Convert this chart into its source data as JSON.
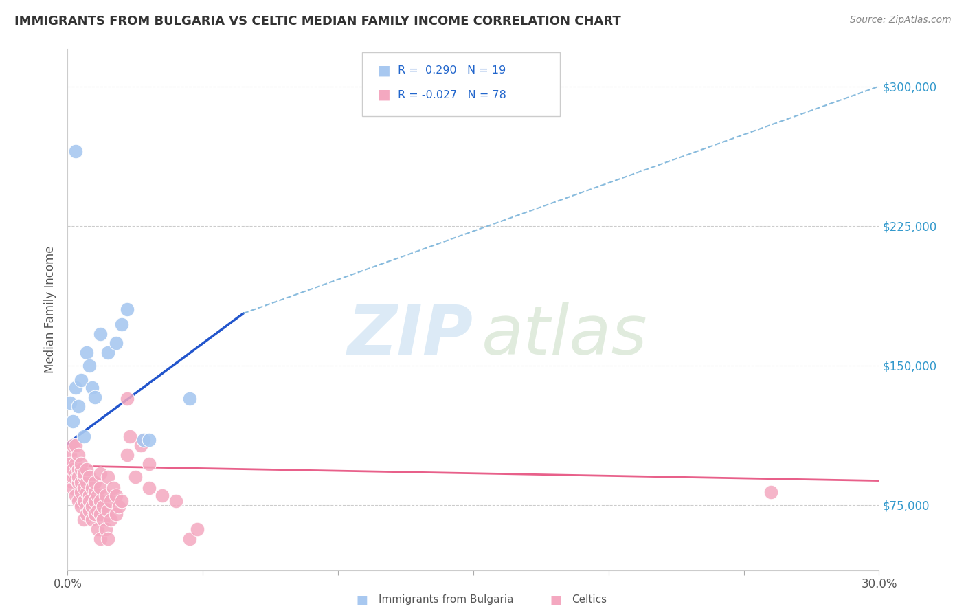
{
  "title": "IMMIGRANTS FROM BULGARIA VS CELTIC MEDIAN FAMILY INCOME CORRELATION CHART",
  "source": "Source: ZipAtlas.com",
  "ylabel": "Median Family Income",
  "xlim": [
    0.0,
    0.3
  ],
  "ylim": [
    40000,
    320000
  ],
  "yticks": [
    75000,
    150000,
    225000,
    300000
  ],
  "ytick_labels": [
    "$75,000",
    "$150,000",
    "$225,000",
    "$300,000"
  ],
  "xticks": [
    0.0,
    0.05,
    0.1,
    0.15,
    0.2,
    0.25,
    0.3
  ],
  "color_bulgaria": "#a8c8f0",
  "color_celtics": "#f4a8c0",
  "line_color_bulgaria": "#2255cc",
  "line_color_celtics": "#e8608a",
  "dashed_line_color": "#88bbdd",
  "title_color": "#333333",
  "grid_color": "#cccccc",
  "bg_color": "#ffffff",
  "bulgaria_dots": [
    [
      0.001,
      130000
    ],
    [
      0.002,
      120000
    ],
    [
      0.003,
      138000
    ],
    [
      0.004,
      128000
    ],
    [
      0.005,
      142000
    ],
    [
      0.006,
      112000
    ],
    [
      0.007,
      157000
    ],
    [
      0.008,
      150000
    ],
    [
      0.009,
      138000
    ],
    [
      0.01,
      133000
    ],
    [
      0.012,
      167000
    ],
    [
      0.015,
      157000
    ],
    [
      0.018,
      162000
    ],
    [
      0.02,
      172000
    ],
    [
      0.022,
      180000
    ],
    [
      0.028,
      110000
    ],
    [
      0.03,
      110000
    ],
    [
      0.045,
      132000
    ],
    [
      0.003,
      265000
    ]
  ],
  "celtics_dots": [
    [
      0.001,
      95000
    ],
    [
      0.001,
      88000
    ],
    [
      0.001,
      102000
    ],
    [
      0.001,
      97000
    ],
    [
      0.002,
      90000
    ],
    [
      0.002,
      94000
    ],
    [
      0.002,
      107000
    ],
    [
      0.002,
      84000
    ],
    [
      0.003,
      92000
    ],
    [
      0.003,
      89000
    ],
    [
      0.003,
      97000
    ],
    [
      0.003,
      80000
    ],
    [
      0.003,
      107000
    ],
    [
      0.004,
      87000
    ],
    [
      0.004,
      94000
    ],
    [
      0.004,
      90000
    ],
    [
      0.004,
      77000
    ],
    [
      0.004,
      102000
    ],
    [
      0.005,
      87000
    ],
    [
      0.005,
      94000
    ],
    [
      0.005,
      82000
    ],
    [
      0.005,
      97000
    ],
    [
      0.005,
      74000
    ],
    [
      0.006,
      90000
    ],
    [
      0.006,
      84000
    ],
    [
      0.006,
      77000
    ],
    [
      0.006,
      67000
    ],
    [
      0.006,
      92000
    ],
    [
      0.007,
      82000
    ],
    [
      0.007,
      74000
    ],
    [
      0.007,
      70000
    ],
    [
      0.007,
      87000
    ],
    [
      0.007,
      94000
    ],
    [
      0.008,
      80000
    ],
    [
      0.008,
      72000
    ],
    [
      0.008,
      90000
    ],
    [
      0.008,
      77000
    ],
    [
      0.009,
      84000
    ],
    [
      0.009,
      74000
    ],
    [
      0.009,
      67000
    ],
    [
      0.01,
      82000
    ],
    [
      0.01,
      70000
    ],
    [
      0.01,
      77000
    ],
    [
      0.01,
      87000
    ],
    [
      0.011,
      80000
    ],
    [
      0.011,
      72000
    ],
    [
      0.011,
      62000
    ],
    [
      0.012,
      77000
    ],
    [
      0.012,
      70000
    ],
    [
      0.012,
      84000
    ],
    [
      0.012,
      57000
    ],
    [
      0.012,
      92000
    ],
    [
      0.013,
      74000
    ],
    [
      0.013,
      67000
    ],
    [
      0.014,
      80000
    ],
    [
      0.014,
      62000
    ],
    [
      0.015,
      72000
    ],
    [
      0.015,
      90000
    ],
    [
      0.015,
      57000
    ],
    [
      0.016,
      77000
    ],
    [
      0.016,
      67000
    ],
    [
      0.017,
      84000
    ],
    [
      0.018,
      80000
    ],
    [
      0.018,
      70000
    ],
    [
      0.019,
      74000
    ],
    [
      0.02,
      77000
    ],
    [
      0.022,
      132000
    ],
    [
      0.022,
      102000
    ],
    [
      0.023,
      112000
    ],
    [
      0.025,
      90000
    ],
    [
      0.027,
      107000
    ],
    [
      0.028,
      110000
    ],
    [
      0.03,
      97000
    ],
    [
      0.03,
      84000
    ],
    [
      0.035,
      80000
    ],
    [
      0.04,
      77000
    ],
    [
      0.045,
      57000
    ],
    [
      0.048,
      62000
    ],
    [
      0.26,
      82000
    ]
  ],
  "bulgaria_trendline_solid": [
    [
      0.0,
      108000
    ],
    [
      0.065,
      178000
    ]
  ],
  "bulgaria_trendline_dashed": [
    [
      0.065,
      178000
    ],
    [
      0.3,
      300000
    ]
  ],
  "celtics_trendline": [
    [
      0.0,
      96000
    ],
    [
      0.3,
      88000
    ]
  ]
}
